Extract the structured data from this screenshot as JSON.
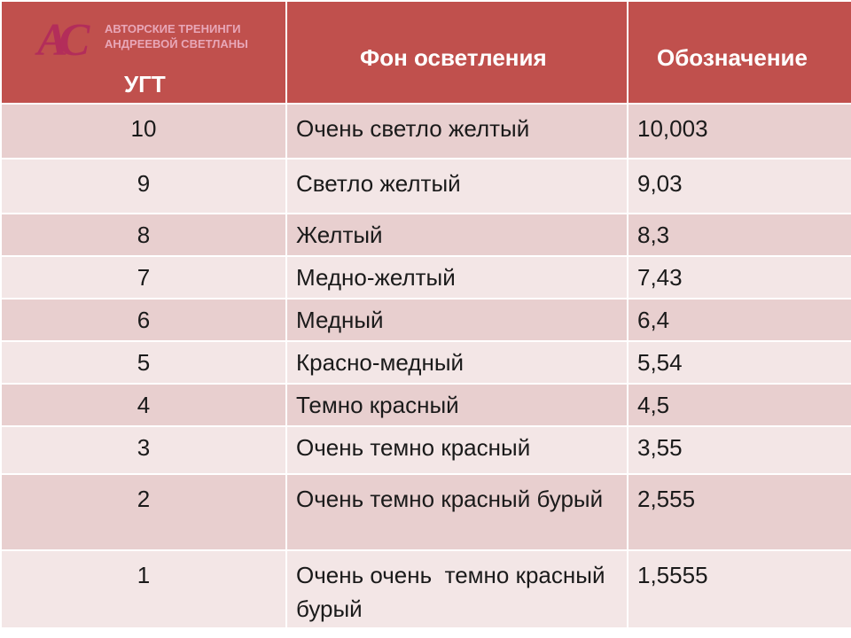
{
  "logo": {
    "monogram": "AC",
    "line1": "Авторские тренинги",
    "line2": "Андреевой Светланы"
  },
  "headers": {
    "ugt": "УГТ",
    "background": "Фон осветления",
    "designation": "Обозначение"
  },
  "rows": [
    {
      "ugt": "10",
      "name": "Очень светло желтый",
      "code": "10,003"
    },
    {
      "ugt": "9",
      "name": "Светло желтый",
      "code": "9,03"
    },
    {
      "ugt": "8",
      "name": "Желтый",
      "code": "8,3"
    },
    {
      "ugt": "7",
      "name": "Медно-желтый",
      "code": "7,43"
    },
    {
      "ugt": "6",
      "name": "Медный",
      "code": "6,4"
    },
    {
      "ugt": "5",
      "name": "Красно-медный",
      "code": "5,54"
    },
    {
      "ugt": "4",
      "name": "Темно красный",
      "code": "4,5"
    },
    {
      "ugt": "3",
      "name": "Очень темно красный",
      "code": "3,55"
    },
    {
      "ugt": "2",
      "name": "Очень темно красный бурый",
      "code": "2,555"
    },
    {
      "ugt": "1",
      "name": "Очень очень  темно красный бурый",
      "code": "1,5555"
    }
  ],
  "colors": {
    "header": "#c0504d",
    "row_odd": "#e8cfcf",
    "row_even": "#f3e6e6",
    "logo": "#b32d5a"
  }
}
